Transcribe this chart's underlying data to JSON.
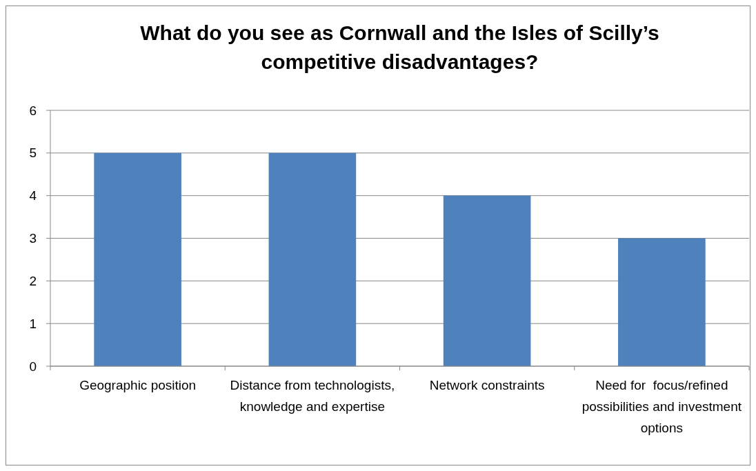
{
  "chart_data": {
    "type": "bar",
    "title": "What do you see as Cornwall and the Isles of Scilly’s competitive disadvantages?",
    "categories": [
      "Geographic position",
      "Distance from technologists, knowledge and expertise",
      "Network constraints",
      "Need for  focus/refined possibilities and investment options"
    ],
    "values": [
      5,
      5,
      4,
      3
    ],
    "color": "#4f81bd",
    "ylim": [
      0,
      6
    ],
    "yticks": [
      0,
      1,
      2,
      3,
      4,
      5,
      6
    ],
    "grid": "y"
  }
}
